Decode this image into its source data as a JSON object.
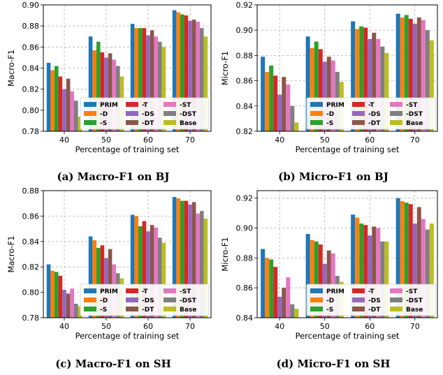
{
  "colors": [
    "#1f77b4",
    "#ff7f0e",
    "#2ca02c",
    "#d62728",
    "#9467bd",
    "#8c564b",
    "#e377c2",
    "#7f7f7f",
    "#bcbd22"
  ],
  "chart_data": [
    {
      "type": "bar",
      "caption": "(a) Macro-F1 on BJ",
      "xlabel": "Percentage of training set",
      "ylabel": "Macro-F1",
      "categories": [
        "40",
        "50",
        "60",
        "70"
      ],
      "ylim": [
        0.78,
        0.9
      ],
      "yticks": [
        "0.78",
        "0.80",
        "0.82",
        "0.84",
        "0.86",
        "0.88",
        "0.90"
      ],
      "grid": true,
      "legend_position": "lower-right",
      "series": [
        {
          "name": "PRIM",
          "values": [
            0.845,
            0.87,
            0.882,
            0.895
          ]
        },
        {
          "name": "-D",
          "values": [
            0.838,
            0.857,
            0.878,
            0.893
          ]
        },
        {
          "name": "-S",
          "values": [
            0.842,
            0.865,
            0.878,
            0.891
          ]
        },
        {
          "name": "-T",
          "values": [
            0.832,
            0.855,
            0.878,
            0.89
          ]
        },
        {
          "name": "-DS",
          "values": [
            0.82,
            0.85,
            0.871,
            0.885
          ]
        },
        {
          "name": "-DT",
          "values": [
            0.83,
            0.854,
            0.876,
            0.886
          ]
        },
        {
          "name": "-ST",
          "values": [
            0.818,
            0.848,
            0.87,
            0.884
          ]
        },
        {
          "name": "-DST",
          "values": [
            0.809,
            0.842,
            0.865,
            0.878
          ]
        },
        {
          "name": "Base",
          "values": [
            0.794,
            0.832,
            0.86,
            0.87
          ]
        }
      ]
    },
    {
      "type": "bar",
      "caption": "(b) Micro-F1 on BJ",
      "xlabel": "Percentage of training set",
      "ylabel": "Micro-F1",
      "categories": [
        "40",
        "50",
        "60",
        "70"
      ],
      "ylim": [
        0.82,
        0.92
      ],
      "yticks": [
        "0.82",
        "0.84",
        "0.86",
        "0.88",
        "0.90",
        "0.92"
      ],
      "grid": true,
      "legend_position": "lower-right",
      "series": [
        {
          "name": "PRIM",
          "values": [
            0.879,
            0.895,
            0.907,
            0.913
          ]
        },
        {
          "name": "-D",
          "values": [
            0.867,
            0.886,
            0.901,
            0.91
          ]
        },
        {
          "name": "-S",
          "values": [
            0.872,
            0.891,
            0.903,
            0.912
          ]
        },
        {
          "name": "-T",
          "values": [
            0.864,
            0.885,
            0.902,
            0.909
          ]
        },
        {
          "name": "-DS",
          "values": [
            0.849,
            0.875,
            0.893,
            0.905
          ]
        },
        {
          "name": "-DT",
          "values": [
            0.863,
            0.879,
            0.898,
            0.91
          ]
        },
        {
          "name": "-ST",
          "values": [
            0.857,
            0.876,
            0.893,
            0.908
          ]
        },
        {
          "name": "-DST",
          "values": [
            0.84,
            0.867,
            0.887,
            0.9
          ]
        },
        {
          "name": "Base",
          "values": [
            0.827,
            0.859,
            0.882,
            0.892
          ]
        }
      ]
    },
    {
      "type": "bar",
      "caption": "(c) Macro-F1 on SH",
      "xlabel": "Percentage of training set",
      "ylabel": "Macro-F1",
      "categories": [
        "40",
        "50",
        "60",
        "70"
      ],
      "ylim": [
        0.78,
        0.88
      ],
      "yticks": [
        "0.78",
        "0.80",
        "0.82",
        "0.84",
        "0.86",
        "0.88"
      ],
      "grid": true,
      "legend_position": "lower-right",
      "series": [
        {
          "name": "PRIM",
          "values": [
            0.822,
            0.844,
            0.861,
            0.875
          ]
        },
        {
          "name": "-D",
          "values": [
            0.817,
            0.841,
            0.86,
            0.874
          ]
        },
        {
          "name": "-S",
          "values": [
            0.816,
            0.835,
            0.852,
            0.872
          ]
        },
        {
          "name": "-T",
          "values": [
            0.813,
            0.837,
            0.856,
            0.872
          ]
        },
        {
          "name": "-DS",
          "values": [
            0.802,
            0.827,
            0.848,
            0.869
          ]
        },
        {
          "name": "-DT",
          "values": [
            0.799,
            0.834,
            0.853,
            0.871
          ]
        },
        {
          "name": "-ST",
          "values": [
            0.803,
            0.822,
            0.851,
            0.862
          ]
        },
        {
          "name": "-DST",
          "values": [
            0.791,
            0.815,
            0.843,
            0.864
          ]
        },
        {
          "name": "Base",
          "values": [
            0.789,
            0.811,
            0.839,
            0.858
          ]
        }
      ]
    },
    {
      "type": "bar",
      "caption": "(d) Micro-F1 on SH",
      "xlabel": "Percentage of training set",
      "ylabel": "Micro-F1",
      "categories": [
        "40",
        "50",
        "60",
        "70"
      ],
      "ylim": [
        0.84,
        0.925
      ],
      "yticks": [
        "0.84",
        "0.86",
        "0.88",
        "0.90",
        "0.92"
      ],
      "grid": true,
      "legend_position": "lower-right",
      "series": [
        {
          "name": "PRIM",
          "values": [
            0.886,
            0.896,
            0.909,
            0.92
          ]
        },
        {
          "name": "-D",
          "values": [
            0.88,
            0.892,
            0.907,
            0.918
          ]
        },
        {
          "name": "-S",
          "values": [
            0.879,
            0.891,
            0.903,
            0.917
          ]
        },
        {
          "name": "-T",
          "values": [
            0.874,
            0.889,
            0.902,
            0.916
          ]
        },
        {
          "name": "-DS",
          "values": [
            0.854,
            0.876,
            0.895,
            0.903
          ]
        },
        {
          "name": "-DT",
          "values": [
            0.86,
            0.885,
            0.901,
            0.914
          ]
        },
        {
          "name": "-ST",
          "values": [
            0.867,
            0.883,
            0.9,
            0.906
          ]
        },
        {
          "name": "-DST",
          "values": [
            0.849,
            0.868,
            0.891,
            0.899
          ]
        },
        {
          "name": "Base",
          "values": [
            0.846,
            0.864,
            0.891,
            0.903
          ]
        }
      ]
    }
  ]
}
